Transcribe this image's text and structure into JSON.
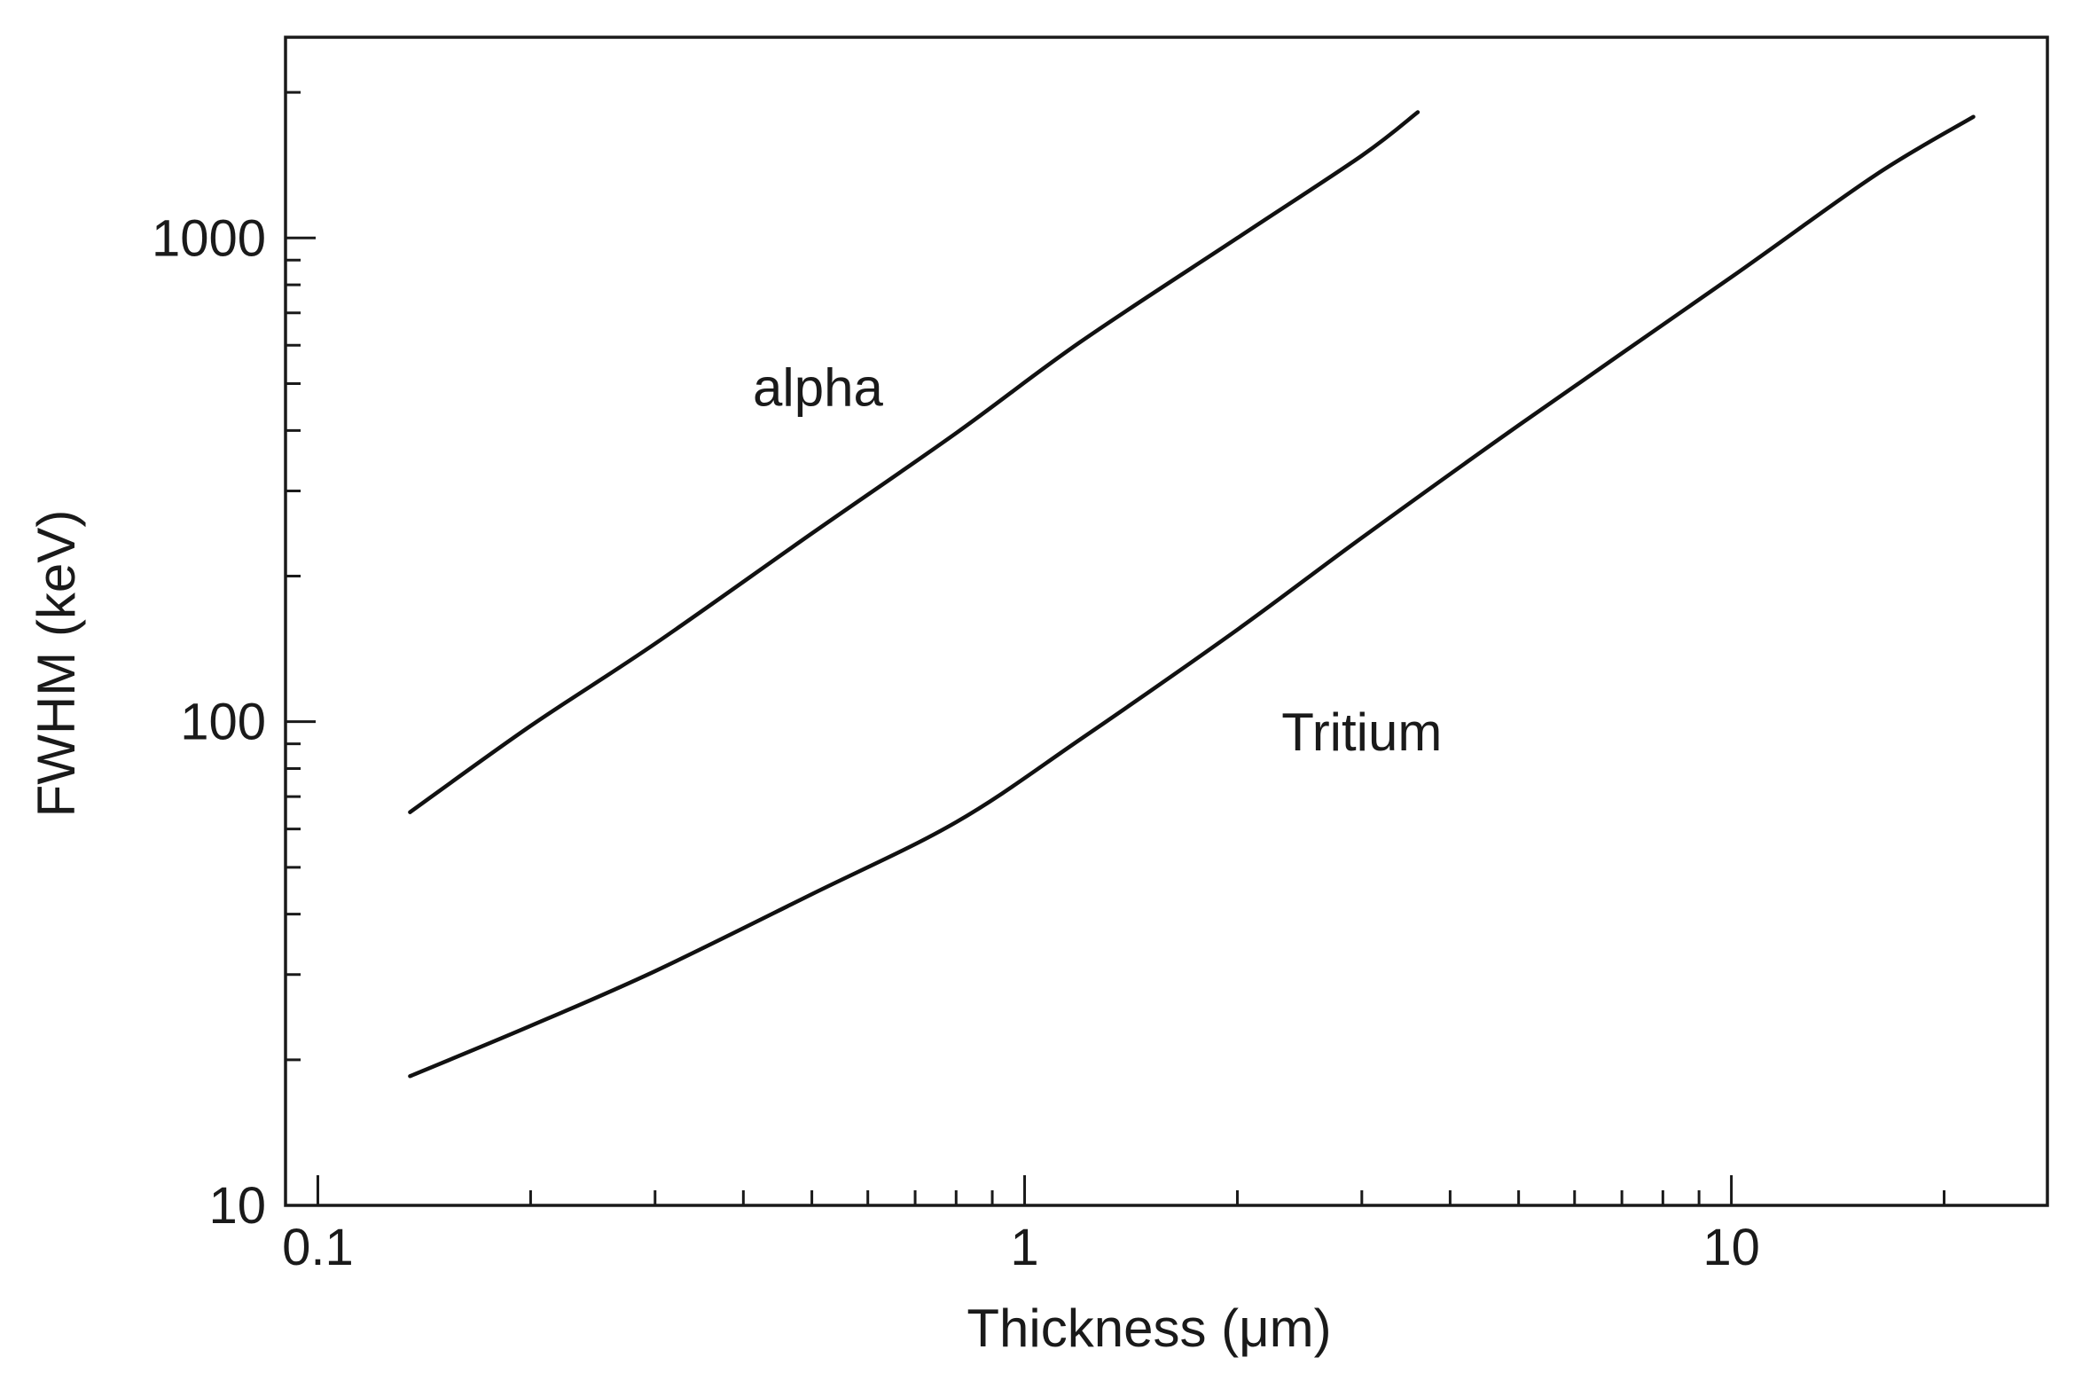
{
  "chart_data": {
    "type": "line",
    "title": "",
    "xlabel": "Thickness (μm)",
    "ylabel": "FWHM (keV)",
    "xscale": "log",
    "yscale": "log",
    "xlim": [
      0.09,
      28
    ],
    "ylim": [
      10,
      2600
    ],
    "xticks": [
      0.1,
      1,
      10
    ],
    "xtick_labels": [
      "0.1",
      "1",
      "10"
    ],
    "yticks": [
      10,
      100,
      1000
    ],
    "ytick_labels": [
      "10",
      "100",
      "1000"
    ],
    "grid": false,
    "legend": "none",
    "series": [
      {
        "name": "alpha",
        "label_at": [
          0.51,
          490
        ],
        "x": [
          0.135,
          0.2,
          0.3,
          0.5,
          0.8,
          1.2,
          2.0,
          3.0,
          3.6
        ],
        "y": [
          65,
          98,
          145,
          245,
          395,
          610,
          1000,
          1480,
          1820
        ]
      },
      {
        "name": "Tritium",
        "label_at": [
          3.0,
          95
        ],
        "x": [
          0.135,
          0.2,
          0.3,
          0.5,
          0.8,
          1.2,
          2.0,
          3.0,
          5.0,
          10.0,
          16.0,
          22.0
        ],
        "y": [
          18.5,
          23.5,
          30.5,
          44,
          62,
          92,
          155,
          240,
          410,
          830,
          1350,
          1780
        ]
      }
    ]
  }
}
